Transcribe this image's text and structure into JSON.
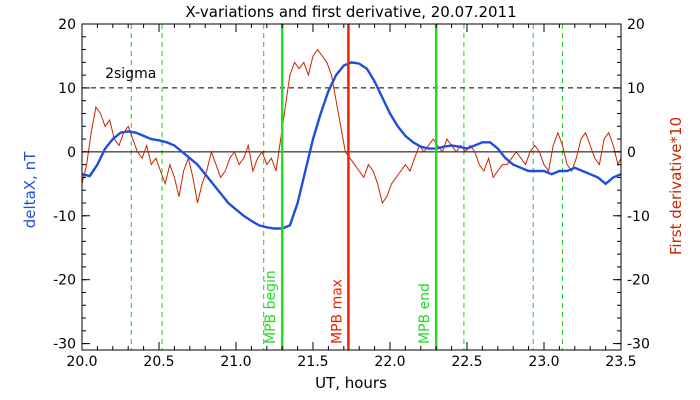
{
  "chart_data": {
    "type": "line",
    "title": "X-variations and first derivative, 20.07.2011",
    "xlabel": "UT, hours",
    "ylabel_left": "deltaX, nT",
    "ylabel_right": "First derivative*10",
    "xlim": [
      20.0,
      23.5
    ],
    "ylim": [
      -31,
      20
    ],
    "x_ticks": [
      "20.0",
      "20.5",
      "21.0",
      "21.5",
      "22.0",
      "22.5",
      "23.0",
      "23.5"
    ],
    "y_ticks": [
      "20",
      "10",
      "0",
      "-10",
      "-20",
      "-30"
    ],
    "sigma_level": 10,
    "sigma_label": "2sigma",
    "colors": {
      "deltaX": "#1f4fd8",
      "derivative": "#cc2200",
      "mpb_edges": "#22dd22",
      "mpb_max": "#ee2200",
      "grid_dash": "#22cc22"
    },
    "mpb_lines": [
      {
        "x": 21.3,
        "label": "MPB begin",
        "kind": "edge"
      },
      {
        "x": 21.73,
        "label": "MPB max",
        "kind": "max"
      },
      {
        "x": 22.3,
        "label": "MPB end",
        "kind": "edge"
      }
    ],
    "dashed_markers_x": [
      20.32,
      20.52,
      21.18,
      22.48,
      22.93,
      23.12
    ],
    "series": [
      {
        "name": "deltaX",
        "axis": "left",
        "x": [
          20.0,
          20.05,
          20.1,
          20.15,
          20.2,
          20.25,
          20.3,
          20.35,
          20.4,
          20.45,
          20.5,
          20.55,
          20.6,
          20.65,
          20.7,
          20.75,
          20.8,
          20.85,
          20.9,
          20.95,
          21.0,
          21.05,
          21.1,
          21.15,
          21.2,
          21.25,
          21.3,
          21.35,
          21.4,
          21.45,
          21.5,
          21.55,
          21.6,
          21.65,
          21.7,
          21.75,
          21.8,
          21.85,
          21.9,
          21.95,
          22.0,
          22.05,
          22.1,
          22.15,
          22.2,
          22.25,
          22.3,
          22.35,
          22.4,
          22.45,
          22.5,
          22.55,
          22.6,
          22.65,
          22.7,
          22.75,
          22.8,
          22.85,
          22.9,
          22.95,
          23.0,
          23.05,
          23.1,
          23.15,
          23.2,
          23.25,
          23.3,
          23.35,
          23.4,
          23.45,
          23.5
        ],
        "values": [
          -3.5,
          -3.8,
          -2,
          0.5,
          2,
          3,
          3.2,
          3,
          2.5,
          2,
          1.8,
          1.5,
          1,
          0,
          -1,
          -2,
          -3.5,
          -5,
          -6.5,
          -8,
          -9,
          -10,
          -10.8,
          -11.5,
          -11.8,
          -12,
          -12,
          -11.5,
          -8,
          -3,
          2,
          6,
          9.5,
          12,
          13.5,
          14,
          13.8,
          13,
          11,
          8.5,
          6,
          4,
          2.5,
          1.5,
          0.8,
          0.5,
          0.5,
          0.8,
          1,
          0.8,
          0.5,
          1,
          1.5,
          1.5,
          0.5,
          -1,
          -2,
          -2.5,
          -3,
          -3,
          -3,
          -3.5,
          -3,
          -3,
          -2.5,
          -3,
          -3.5,
          -4,
          -5,
          -4,
          -3.5
        ]
      },
      {
        "name": "First derivative*10",
        "axis": "right",
        "x": [
          20.0,
          20.03,
          20.06,
          20.09,
          20.12,
          20.15,
          20.18,
          20.21,
          20.24,
          20.27,
          20.3,
          20.33,
          20.36,
          20.39,
          20.42,
          20.45,
          20.48,
          20.51,
          20.54,
          20.57,
          20.6,
          20.63,
          20.66,
          20.69,
          20.72,
          20.75,
          20.78,
          20.81,
          20.84,
          20.87,
          20.9,
          20.93,
          20.96,
          20.99,
          21.02,
          21.05,
          21.08,
          21.11,
          21.14,
          21.17,
          21.2,
          21.23,
          21.26,
          21.29,
          21.32,
          21.35,
          21.38,
          21.41,
          21.44,
          21.47,
          21.5,
          21.53,
          21.56,
          21.59,
          21.62,
          21.65,
          21.68,
          21.71,
          21.74,
          21.77,
          21.8,
          21.83,
          21.86,
          21.89,
          21.92,
          21.95,
          21.98,
          22.01,
          22.04,
          22.07,
          22.1,
          22.13,
          22.16,
          22.19,
          22.22,
          22.25,
          22.28,
          22.31,
          22.34,
          22.37,
          22.4,
          22.43,
          22.46,
          22.49,
          22.52,
          22.55,
          22.58,
          22.61,
          22.64,
          22.67,
          22.7,
          22.73,
          22.76,
          22.79,
          22.82,
          22.85,
          22.88,
          22.91,
          22.94,
          22.97,
          23.0,
          23.03,
          23.06,
          23.09,
          23.12,
          23.15,
          23.18,
          23.21,
          23.24,
          23.27,
          23.3,
          23.33,
          23.36,
          23.39,
          23.42,
          23.45,
          23.48,
          23.5
        ],
        "values": [
          -5,
          -2,
          3,
          7,
          6,
          4,
          5,
          2,
          1,
          3,
          4,
          2,
          0,
          -1,
          1,
          -2,
          -1,
          -3,
          -5,
          -2,
          -4,
          -7,
          -3,
          -1,
          -4,
          -8,
          -5,
          -3,
          0,
          -2,
          -4,
          -3,
          -1,
          0,
          -2,
          -1,
          1,
          -3,
          -1,
          0,
          -2,
          -1,
          -3,
          2,
          7,
          12,
          14,
          13,
          14,
          12,
          15,
          16,
          15,
          14,
          12,
          8,
          4,
          0,
          -1,
          -2,
          -3,
          -4,
          -2,
          -3,
          -5,
          -8,
          -7,
          -5,
          -4,
          -3,
          -2,
          -3,
          -1,
          1,
          0,
          1,
          2,
          1,
          0,
          2,
          1,
          0,
          1,
          0,
          1,
          0,
          -2,
          -3,
          -1,
          -4,
          -3,
          -2,
          -2,
          -1,
          0,
          -1,
          -2,
          0,
          1,
          0,
          -2,
          -3,
          1,
          3,
          1,
          -2,
          -3,
          -1,
          2,
          3,
          1,
          -1,
          -2,
          2,
          3,
          1,
          -2,
          -1
        ]
      }
    ]
  }
}
